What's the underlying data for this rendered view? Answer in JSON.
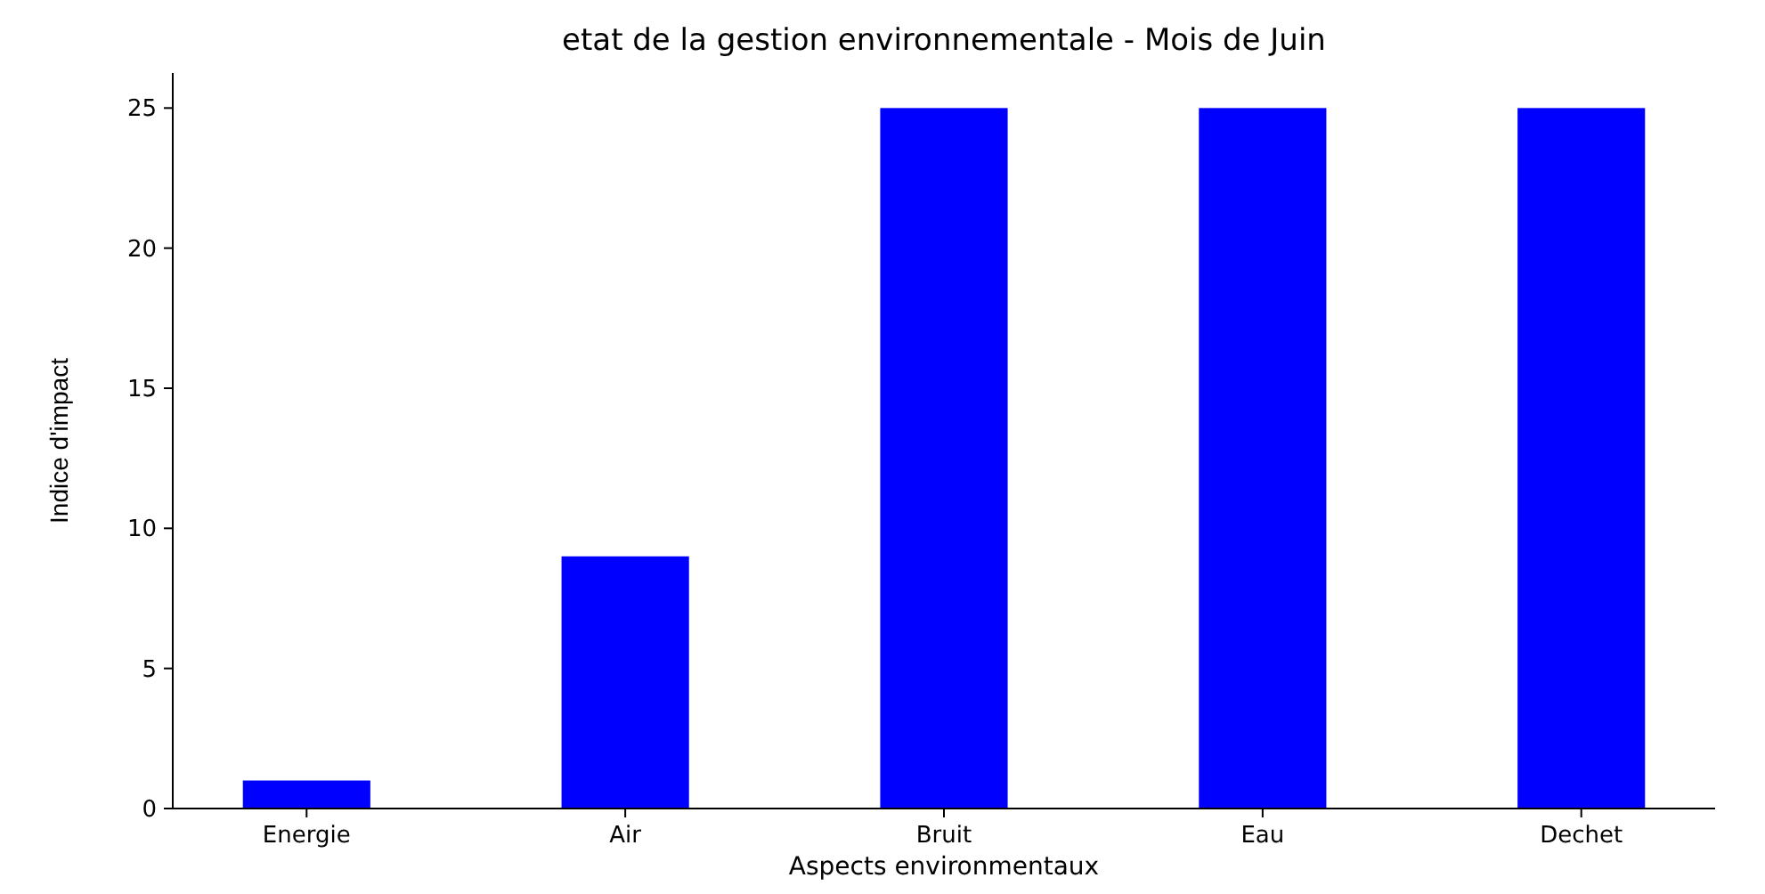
{
  "chart_data": {
    "type": "bar",
    "title": "etat de la gestion environnementale - Mois de Juin",
    "xlabel": "Aspects environmentaux",
    "ylabel": "Indice d'impact",
    "categories": [
      "Energie",
      "Air",
      "Bruit",
      "Eau",
      "Dechet"
    ],
    "values": [
      1,
      9,
      25,
      25,
      25
    ],
    "color": "#0000ff",
    "ylim": [
      0,
      26.25
    ],
    "yticks": [
      0,
      5,
      10,
      15,
      20,
      25
    ],
    "grid": false
  }
}
